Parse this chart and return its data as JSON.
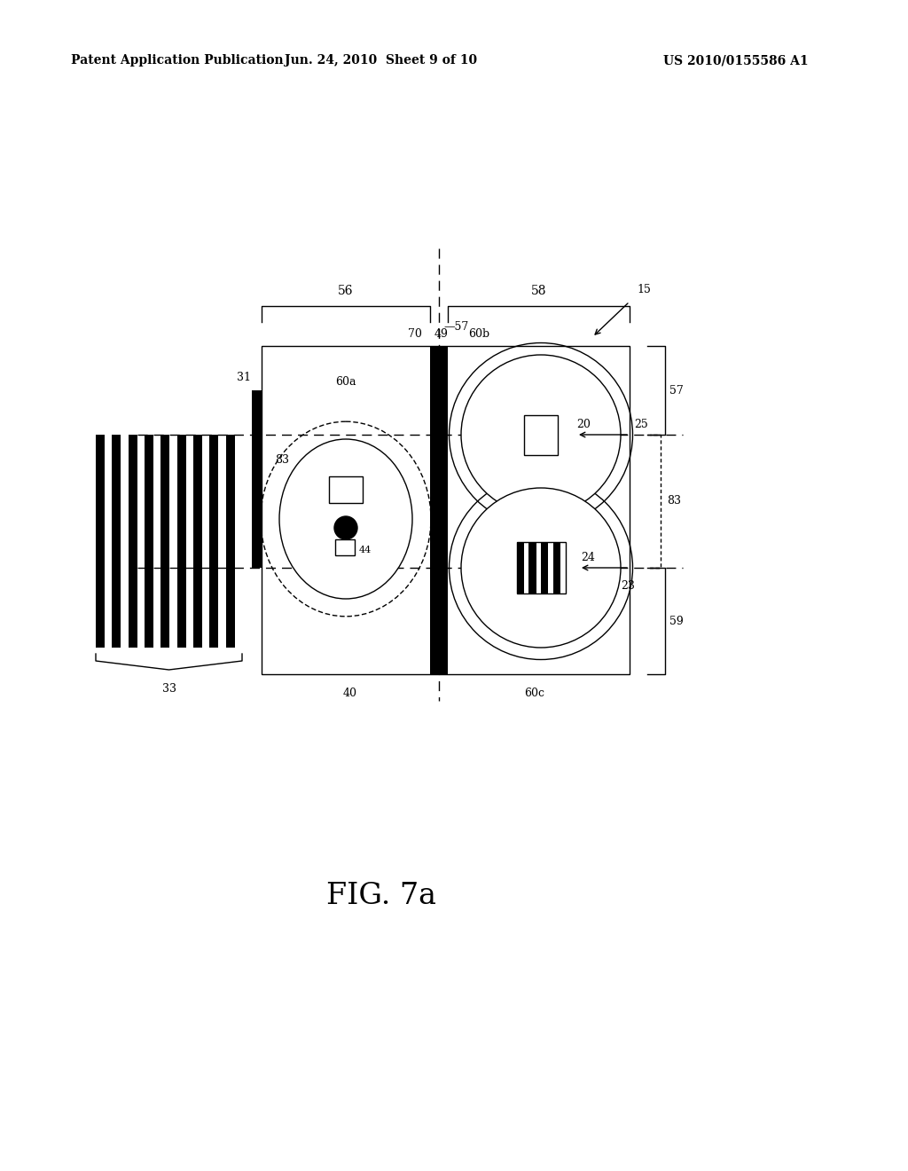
{
  "bg_color": "#ffffff",
  "header_left": "Patent Application Publication",
  "header_center": "Jun. 24, 2010  Sheet 9 of 10",
  "header_right": "US 2010/0155586 A1",
  "figure_label": "FIG. 7a",
  "line_color": "#000000"
}
